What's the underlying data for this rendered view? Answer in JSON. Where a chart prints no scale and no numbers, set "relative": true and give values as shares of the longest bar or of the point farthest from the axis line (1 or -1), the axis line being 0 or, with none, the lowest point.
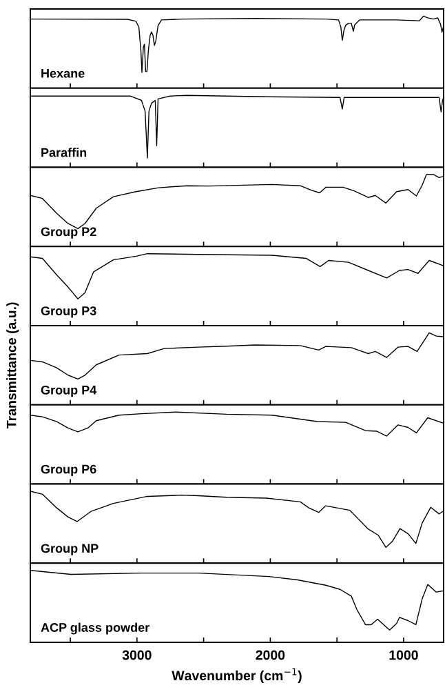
{
  "chart_data": [
    {
      "type": "line",
      "relative": true,
      "xlim": [
        3800,
        700
      ],
      "xticks": [
        {
          "value": 3500,
          "label": null
        },
        3000,
        {
          "value": 2500,
          "label": null
        },
        2000,
        {
          "value": 1500,
          "label": null
        },
        1000
      ],
      "tick_labels": false,
      "annotations": [
        "Hexane"
      ],
      "x": [
        3800,
        3071,
        3007,
        2986,
        2971,
        2963,
        2952,
        2944,
        2935,
        2925,
        2914,
        2901,
        2891,
        2880,
        2869,
        2859,
        2842,
        2816,
        2646,
        2115,
        1584,
        1488,
        1471,
        1460,
        1448,
        1435,
        1414,
        1392,
        1377,
        1367,
        1329,
        1052,
        882,
        851,
        819,
        776,
        744,
        723,
        712,
        700
      ],
      "series": [
        {
          "color": "#000000",
          "values": [
            0.96,
            0.956,
            0.928,
            0.849,
            0.534,
            0.219,
            0.57,
            0.61,
            0.231,
            0.231,
            0.534,
            0.733,
            0.781,
            0.733,
            0.594,
            0.653,
            0.869,
            0.948,
            0.96,
            0.968,
            0.96,
            0.948,
            0.849,
            0.665,
            0.801,
            0.873,
            0.9,
            0.9,
            0.789,
            0.88,
            0.948,
            0.948,
            0.936,
            1.0,
            0.976,
            0.96,
            0.976,
            0.888,
            0.777,
            0.869
          ]
        }
      ]
    },
    {
      "type": "line",
      "relative": true,
      "xlim": [
        3800,
        700
      ],
      "xticks": [
        {
          "value": 3500,
          "label": null
        },
        3000,
        {
          "value": 2500,
          "label": null
        },
        2000,
        {
          "value": 1500,
          "label": null
        },
        1000
      ],
      "tick_labels": false,
      "annotations": [
        "Paraffin"
      ],
      "x": [
        3800,
        3050,
        2966,
        2939,
        2922,
        2910,
        2891,
        2863,
        2852,
        2842,
        2752,
        2625,
        2030,
        1477,
        1460,
        1446,
        1052,
        734,
        719,
        708,
        700
      ],
      "series": [
        {
          "color": "#000000",
          "values": [
            0.99,
            0.99,
            0.93,
            0.78,
            0.13,
            0.78,
            0.89,
            0.93,
            0.3,
            0.95,
            0.99,
            1.0,
            0.98,
            0.97,
            0.81,
            0.97,
            0.97,
            0.97,
            0.77,
            0.93,
            0.97
          ]
        }
      ]
    },
    {
      "type": "line",
      "relative": true,
      "xlim": [
        3800,
        700
      ],
      "xticks": [
        {
          "value": 3500,
          "label": null
        },
        3000,
        {
          "value": 2500,
          "label": null
        },
        2000,
        {
          "value": 1500,
          "label": null
        },
        1000
      ],
      "tick_labels": false,
      "annotations": [
        "Group P2"
      ],
      "x": [
        3800,
        3709,
        3602,
        3517,
        3443,
        3390,
        3305,
        3177,
        3007,
        2837,
        2625,
        2455,
        1987,
        1775,
        1690,
        1630,
        1584,
        1456,
        1371,
        1265,
        1212,
        1133,
        1052,
        967,
        904,
        861,
        829,
        776,
        734,
        700
      ],
      "series": [
        {
          "color": "#000000",
          "values": [
            0.709,
            0.667,
            0.461,
            0.319,
            0.248,
            0.319,
            0.532,
            0.691,
            0.762,
            0.816,
            0.844,
            0.84,
            0.862,
            0.844,
            0.78,
            0.745,
            0.823,
            0.823,
            0.773,
            0.681,
            0.709,
            0.603,
            0.762,
            0.791,
            0.702,
            0.851,
            1.0,
            1.0,
            0.957,
            0.975
          ]
        }
      ]
    },
    {
      "type": "line",
      "relative": true,
      "xlim": [
        3800,
        700
      ],
      "xticks": [
        {
          "value": 3500,
          "label": null
        },
        3000,
        {
          "value": 2500,
          "label": null
        },
        2000,
        {
          "value": 1500,
          "label": null
        },
        1000
      ],
      "tick_labels": false,
      "annotations": [
        "Group P3"
      ],
      "x": [
        3800,
        3709,
        3602,
        3517,
        3443,
        3390,
        3326,
        3177,
        3007,
        2922,
        2540,
        1987,
        1732,
        1626,
        1562,
        1414,
        1265,
        1127,
        1031,
        967,
        893,
        808,
        700
      ],
      "series": [
        {
          "color": "#000000",
          "values": [
            0.956,
            0.935,
            0.704,
            0.536,
            0.372,
            0.457,
            0.746,
            0.914,
            0.964,
            1.0,
            0.99,
            0.978,
            0.935,
            0.821,
            0.906,
            0.881,
            0.767,
            0.662,
            0.767,
            0.78,
            0.726,
            0.906,
            0.831
          ]
        }
      ]
    },
    {
      "type": "line",
      "relative": true,
      "xlim": [
        3800,
        700
      ],
      "xticks": [
        {
          "value": 3500,
          "label": null
        },
        3000,
        {
          "value": 2500,
          "label": null
        },
        2000,
        {
          "value": 1500,
          "label": null
        },
        1000
      ],
      "tick_labels": false,
      "annotations": [
        "Group P4"
      ],
      "ylabel": "Transmittance (a.u.)",
      "x": [
        3800,
        3709,
        3602,
        3517,
        3443,
        3390,
        3305,
        3135,
        2922,
        2795,
        2540,
        2327,
        2115,
        1775,
        1637,
        1584,
        1392,
        1265,
        1212,
        1127,
        1042,
        967,
        899,
        808,
        755,
        700
      ],
      "series": [
        {
          "color": "#000000",
          "values": [
            0.617,
            0.597,
            0.514,
            0.412,
            0.358,
            0.412,
            0.556,
            0.691,
            0.712,
            0.782,
            0.802,
            0.815,
            0.831,
            0.823,
            0.761,
            0.811,
            0.794,
            0.712,
            0.741,
            0.658,
            0.802,
            0.811,
            0.741,
            1.0,
            0.955,
            0.947
          ]
        }
      ]
    },
    {
      "type": "line",
      "relative": true,
      "xlim": [
        3800,
        700
      ],
      "xticks": [
        {
          "value": 3500,
          "label": null
        },
        3000,
        {
          "value": 2500,
          "label": null
        },
        2000,
        {
          "value": 1500,
          "label": null
        },
        1000
      ],
      "tick_labels": false,
      "annotations": [
        "Group P6"
      ],
      "x": [
        3800,
        3709,
        3602,
        3517,
        3443,
        3369,
        3305,
        3135,
        2965,
        2710,
        2327,
        1987,
        1647,
        1435,
        1286,
        1201,
        1127,
        1042,
        967,
        904,
        819,
        700
      ],
      "series": [
        {
          "color": "#000000",
          "values": [
            0.956,
            0.933,
            0.867,
            0.777,
            0.724,
            0.777,
            0.88,
            0.956,
            0.977,
            1.0,
            0.969,
            0.956,
            0.867,
            0.857,
            0.741,
            0.733,
            0.666,
            0.821,
            0.786,
            0.711,
            0.92,
            0.844
          ]
        }
      ]
    },
    {
      "type": "line",
      "relative": true,
      "xlim": [
        3800,
        700
      ],
      "xticks": [
        {
          "value": 3500,
          "label": null
        },
        3000,
        {
          "value": 2500,
          "label": null
        },
        2000,
        {
          "value": 1500,
          "label": null
        },
        1000
      ],
      "tick_labels": false,
      "annotations": [
        "Group NP"
      ],
      "x": [
        3800,
        3709,
        3602,
        3517,
        3449,
        3347,
        3177,
        2922,
        2667,
        2540,
        2327,
        2030,
        1775,
        1711,
        1637,
        1584,
        1403,
        1265,
        1190,
        1133,
        1084,
        1027,
        967,
        908,
        861,
        797,
        734,
        700
      ],
      "series": [
        {
          "color": "#000000",
          "values": [
            1.0,
            0.958,
            0.768,
            0.641,
            0.578,
            0.717,
            0.831,
            0.928,
            0.945,
            0.937,
            0.916,
            0.903,
            0.852,
            0.768,
            0.705,
            0.797,
            0.734,
            0.473,
            0.388,
            0.219,
            0.304,
            0.481,
            0.409,
            0.274,
            0.557,
            0.776,
            0.684,
            0.726
          ]
        }
      ]
    },
    {
      "type": "line",
      "relative": true,
      "xlim": [
        3800,
        700
      ],
      "xticks": [
        {
          "value": 3500,
          "label": null
        },
        3000,
        {
          "value": 2500,
          "label": null
        },
        2000,
        {
          "value": 1500,
          "label": null
        },
        1000
      ],
      "tick_labels": "x",
      "annotations": [
        "ACP glass powder"
      ],
      "xlabel": "Wavenumber (cm$^{−1}$)",
      "x": [
        3800,
        3496,
        2965,
        2540,
        2009,
        1796,
        1584,
        1477,
        1392,
        1350,
        1286,
        1244,
        1195,
        1105,
        1052,
        1031,
        967,
        908,
        861,
        819,
        755,
        700
      ],
      "series": [
        {
          "color": "#000000",
          "values": [
            1.0,
            0.944,
            0.962,
            0.962,
            0.914,
            0.868,
            0.793,
            0.736,
            0.641,
            0.453,
            0.245,
            0.245,
            0.321,
            0.17,
            0.264,
            0.347,
            0.302,
            0.245,
            0.604,
            0.804,
            0.698,
            0.717
          ]
        }
      ]
    }
  ]
}
